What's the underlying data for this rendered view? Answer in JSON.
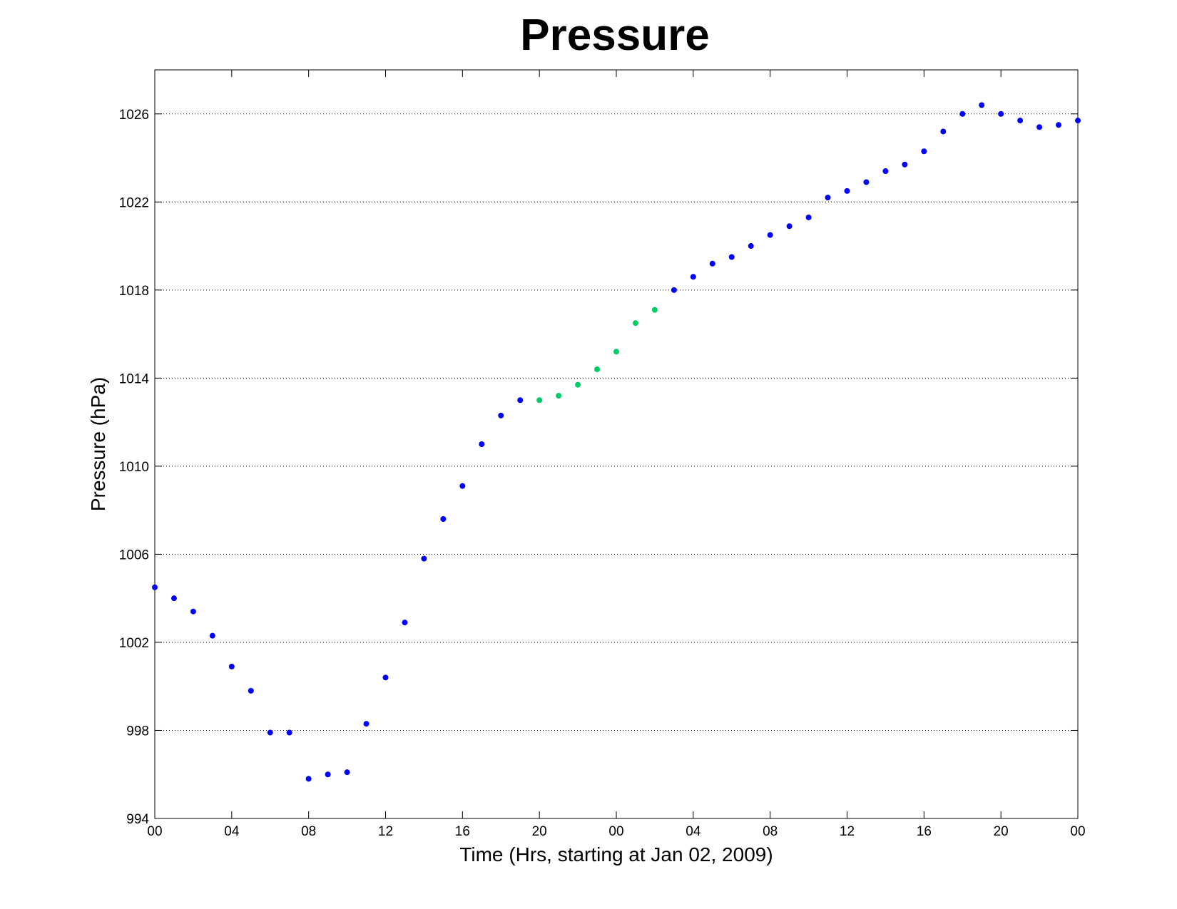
{
  "chart_data": {
    "type": "scatter",
    "title": "Pressure",
    "xlabel": "Time (Hrs, starting at Jan 02, 2009)",
    "ylabel": "Pressure (hPa)",
    "xlim": [
      0,
      48
    ],
    "ylim": [
      994,
      1028
    ],
    "x_ticks": [
      0,
      4,
      8,
      12,
      16,
      20,
      24,
      28,
      32,
      36,
      40,
      44,
      48
    ],
    "x_tick_labels": [
      "00",
      "04",
      "08",
      "12",
      "16",
      "20",
      "00",
      "04",
      "08",
      "12",
      "16",
      "20",
      "00"
    ],
    "y_ticks": [
      994,
      998,
      1002,
      1006,
      1010,
      1014,
      1018,
      1022,
      1026
    ],
    "y_tick_labels": [
      "994",
      "998",
      "1002",
      "1006",
      "1010",
      "1014",
      "1018",
      "1022",
      "1026"
    ],
    "grid": "horizontal dotted",
    "series": [
      {
        "color": "#0000ff",
        "points": [
          [
            0,
            1004.5
          ],
          [
            1,
            1004.0
          ],
          [
            2,
            1003.4
          ],
          [
            3,
            1002.3
          ],
          [
            4,
            1000.9
          ],
          [
            5,
            999.8
          ],
          [
            6,
            997.9
          ],
          [
            7,
            997.9
          ],
          [
            8,
            995.8
          ],
          [
            9,
            996.0
          ],
          [
            10,
            996.1
          ],
          [
            11,
            998.3
          ],
          [
            12,
            1000.4
          ],
          [
            13,
            1002.9
          ],
          [
            14,
            1005.8
          ],
          [
            15,
            1007.6
          ],
          [
            16,
            1009.1
          ],
          [
            17,
            1011.0
          ],
          [
            18,
            1012.3
          ],
          [
            19,
            1013.0
          ],
          [
            27,
            1018.0
          ],
          [
            28,
            1018.6
          ],
          [
            29,
            1019.2
          ],
          [
            30,
            1019.5
          ],
          [
            31,
            1020.0
          ],
          [
            32,
            1020.5
          ],
          [
            33,
            1020.9
          ],
          [
            34,
            1021.3
          ],
          [
            35,
            1022.2
          ],
          [
            36,
            1022.5
          ],
          [
            37,
            1022.9
          ],
          [
            38,
            1023.4
          ],
          [
            39,
            1023.7
          ],
          [
            40,
            1024.3
          ],
          [
            41,
            1025.2
          ],
          [
            42,
            1026.0
          ],
          [
            43,
            1026.4
          ],
          [
            44,
            1026.0
          ],
          [
            45,
            1025.7
          ],
          [
            46,
            1025.4
          ],
          [
            47,
            1025.5
          ],
          [
            48,
            1025.7
          ]
        ]
      },
      {
        "color": "#00cc66",
        "points": [
          [
            20,
            1013.0
          ],
          [
            21,
            1013.2
          ],
          [
            22,
            1013.7
          ],
          [
            23,
            1014.4
          ],
          [
            24,
            1015.2
          ],
          [
            25,
            1016.5
          ],
          [
            26,
            1017.1
          ]
        ]
      }
    ]
  }
}
